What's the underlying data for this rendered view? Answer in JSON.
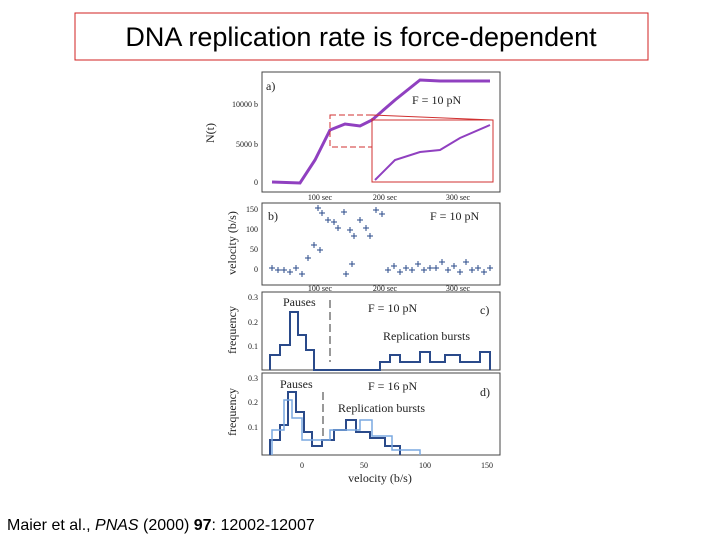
{
  "slide": {
    "title": "DNA replication rate is force-dependent",
    "figure": {
      "panel_a": {
        "label": "a)",
        "force": "F = 10 pN",
        "ylabel": "N(t)",
        "yticks": [
          "10000 b",
          "5000 b",
          "0"
        ],
        "xticks": [
          "100 sec",
          "200 sec",
          "300 sec"
        ]
      },
      "panel_b": {
        "label": "b)",
        "force": "F = 10 pN",
        "ylabel": "velocity (b/s)",
        "yticks": [
          "150",
          "100",
          "50",
          "0"
        ],
        "xticks": [
          "100 sec",
          "200 sec",
          "300 sec"
        ]
      },
      "panel_c": {
        "label": "c)",
        "force": "F = 10 pN",
        "pauses": "Pauses",
        "bursts": "Replication bursts",
        "ylabel": "frequency",
        "yticks": [
          "0.3",
          "0.2",
          "0.1"
        ]
      },
      "panel_d": {
        "label": "d)",
        "force": "F = 16 pN",
        "pauses": "Pauses",
        "bursts": "Replication bursts",
        "ylabel": "frequency",
        "yticks": [
          "0.3",
          "0.2",
          "0.1"
        ],
        "xticks": [
          "0",
          "50",
          "100",
          "150"
        ],
        "xlabel": "velocity (b/s)"
      }
    },
    "citation": {
      "authors": "Maier et al., ",
      "journal": "PNAS",
      "year": " (2000) ",
      "volume": "97",
      "pages": ": 12002-12007"
    }
  }
}
